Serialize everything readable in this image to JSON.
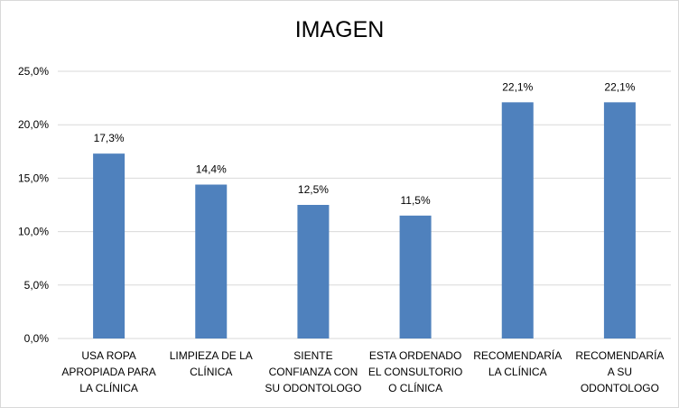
{
  "chart_data": {
    "type": "bar",
    "title": "IMAGEN",
    "categories": [
      [
        "USA ROPA",
        "APROPIADA PARA",
        "LA CLÍNICA"
      ],
      [
        "LIMPIEZA DE LA",
        "CLÍNICA"
      ],
      [
        "SIENTE",
        "CONFIANZA CON",
        "SU ODONTOLOGO"
      ],
      [
        "ESTA ORDENADO",
        "EL CONSULTORIO",
        "O CLÍNICA"
      ],
      [
        "RECOMENDARÍA",
        "LA CLÍNICA"
      ],
      [
        "RECOMENDARÍA",
        "A SU",
        "ODONTOLOGO"
      ]
    ],
    "values": [
      17.3,
      14.4,
      12.5,
      11.5,
      22.1,
      22.1
    ],
    "data_labels": [
      "17,3%",
      "14,4%",
      "12,5%",
      "11,5%",
      "22,1%",
      "22,1%"
    ],
    "yticks": [
      "0,0%",
      "5,0%",
      "10,0%",
      "15,0%",
      "20,0%",
      "25,0%"
    ],
    "ylim": [
      0,
      25
    ],
    "grid": true,
    "bar_color": "#4f81bd",
    "grid_color": "#d9d9d9"
  }
}
